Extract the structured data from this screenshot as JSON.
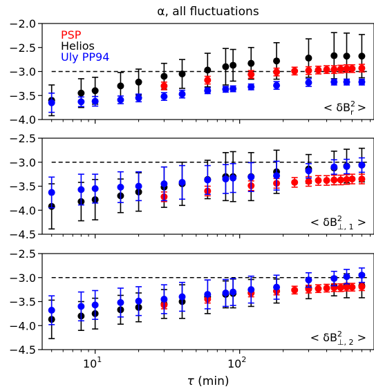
{
  "title": "α, all fluctuations",
  "xlabel_parts": {
    "symbol": "τ",
    "unit": " (min)"
  },
  "x_axis": {
    "scale": "log",
    "xlim": [
      4.3,
      850
    ],
    "major_ticks": [
      10,
      100
    ],
    "major_labels": [
      {
        "value": 10,
        "base": "10",
        "exp": "1"
      },
      {
        "value": 100,
        "base": "10",
        "exp": "2"
      }
    ],
    "minor_ticks": [
      5,
      6,
      7,
      8,
      9,
      20,
      30,
      40,
      50,
      60,
      70,
      80,
      90,
      200,
      300,
      400,
      500,
      600,
      700,
      800
    ]
  },
  "legend": [
    {
      "label": "PSP",
      "color": "#ff0000"
    },
    {
      "label": "Helios",
      "color": "#000000"
    },
    {
      "label": "Uly PP94",
      "color": "#0000ff"
    }
  ],
  "colors": {
    "PSP": "#ff0000",
    "Helios": "#000000",
    "Uly PP94": "#0000ff",
    "reference": "#000000"
  },
  "chart_data": [
    {
      "type": "scatter",
      "panel": "top",
      "annotation": {
        "prefix": "< δB",
        "sup": "2",
        "sub": "r",
        "suffix": " >"
      },
      "ylim": [
        -4.0,
        -2.0
      ],
      "yticks": [
        -4.0,
        -3.5,
        -3.0,
        -2.5,
        -2.0
      ],
      "ytick_labels": [
        "−4.0",
        "−3.5",
        "−3.0",
        "−2.5",
        "−2.0"
      ],
      "reference_line": -3.0,
      "series": [
        {
          "name": "Helios",
          "x": [
            5,
            8,
            10,
            15,
            20,
            30,
            40,
            60,
            80,
            90,
            120,
            180,
            300,
            450,
            550,
            700
          ],
          "y": [
            -3.6,
            -3.45,
            -3.4,
            -3.3,
            -3.22,
            -3.1,
            -3.05,
            -2.97,
            -2.9,
            -2.87,
            -2.83,
            -2.78,
            -2.72,
            -2.67,
            -2.68,
            -2.68
          ],
          "err": [
            0.32,
            0.3,
            0.28,
            0.28,
            0.27,
            0.27,
            0.3,
            0.35,
            0.38,
            0.33,
            0.33,
            0.38,
            0.4,
            0.48,
            0.48,
            0.45
          ]
        },
        {
          "name": "PSP",
          "x": [
            30,
            60,
            120,
            180,
            240,
            300,
            350,
            400,
            450,
            500,
            550,
            600,
            700
          ],
          "y": [
            -3.3,
            -3.18,
            -3.06,
            -3.01,
            -2.99,
            -2.98,
            -2.97,
            -2.96,
            -2.96,
            -2.95,
            -2.94,
            -2.94,
            -2.93
          ],
          "err": [
            0.08,
            0.08,
            0.08,
            0.08,
            0.08,
            0.08,
            0.08,
            0.08,
            0.08,
            0.08,
            0.08,
            0.08,
            0.08
          ]
        },
        {
          "name": "Uly PP94",
          "x": [
            5,
            8,
            10,
            15,
            20,
            30,
            40,
            60,
            80,
            90,
            120,
            180,
            300,
            450,
            550,
            700
          ],
          "y": [
            -3.65,
            -3.63,
            -3.62,
            -3.59,
            -3.55,
            -3.52,
            -3.47,
            -3.4,
            -3.37,
            -3.36,
            -3.32,
            -3.29,
            -3.23,
            -3.22,
            -3.22,
            -3.22
          ],
          "err": [
            0.2,
            0.1,
            0.1,
            0.08,
            0.08,
            0.08,
            0.08,
            0.06,
            0.06,
            0.06,
            0.06,
            0.08,
            0.08,
            0.06,
            0.06,
            0.06
          ]
        }
      ]
    },
    {
      "type": "scatter",
      "panel": "middle",
      "annotation": {
        "prefix": "< δB",
        "sup": "2",
        "sub": "⊥, 1",
        "suffix": " >"
      },
      "ylim": [
        -4.5,
        -2.5
      ],
      "yticks": [
        -4.5,
        -4.0,
        -3.5,
        -3.0,
        -2.5
      ],
      "ytick_labels": [
        "−4.5",
        "−4.0",
        "−3.5",
        "−3.0",
        "−2.5"
      ],
      "reference_line": -3.0,
      "series": [
        {
          "name": "Helios",
          "x": [
            5,
            8,
            10,
            15,
            20,
            30,
            40,
            60,
            80,
            90,
            120,
            180,
            300,
            450,
            550,
            700
          ],
          "y": [
            -3.92,
            -3.82,
            -3.78,
            -3.7,
            -3.62,
            -3.52,
            -3.45,
            -3.36,
            -3.3,
            -3.3,
            -3.3,
            -3.2,
            -3.14,
            -3.12,
            -3.08,
            -3.06
          ],
          "err": [
            0.47,
            0.4,
            0.42,
            0.35,
            0.4,
            0.42,
            0.45,
            0.4,
            0.5,
            0.52,
            0.5,
            0.45,
            0.3,
            0.35,
            0.35,
            0.35
          ]
        },
        {
          "name": "PSP",
          "x": [
            30,
            60,
            120,
            180,
            240,
            300,
            350,
            400,
            450,
            500,
            550,
            600,
            700
          ],
          "y": [
            -3.72,
            -3.6,
            -3.49,
            -3.44,
            -3.42,
            -3.4,
            -3.38,
            -3.38,
            -3.37,
            -3.37,
            -3.36,
            -3.35,
            -3.35
          ],
          "err": [
            0.1,
            0.1,
            0.1,
            0.1,
            0.1,
            0.1,
            0.1,
            0.1,
            0.1,
            0.1,
            0.1,
            0.1,
            0.1
          ]
        },
        {
          "name": "Uly PP94",
          "x": [
            5,
            8,
            10,
            15,
            20,
            30,
            40,
            60,
            80,
            90,
            120,
            180,
            300,
            450,
            550,
            700
          ],
          "y": [
            -3.63,
            -3.57,
            -3.55,
            -3.52,
            -3.5,
            -3.45,
            -3.42,
            -3.37,
            -3.35,
            -3.33,
            -3.31,
            -3.28,
            -3.18,
            -3.1,
            -3.09,
            -3.06
          ],
          "err": [
            0.32,
            0.32,
            0.3,
            0.32,
            0.3,
            0.35,
            0.35,
            0.3,
            0.3,
            0.3,
            0.3,
            0.3,
            0.15,
            0.15,
            0.15,
            0.15
          ]
        }
      ]
    },
    {
      "type": "scatter",
      "panel": "bottom",
      "annotation": {
        "prefix": "< δB",
        "sup": "2",
        "sub": "⊥, 2",
        "suffix": " >"
      },
      "ylim": [
        -4.5,
        -2.5
      ],
      "yticks": [
        -4.5,
        -4.0,
        -3.5,
        -3.0,
        -2.5
      ],
      "ytick_labels": [
        "−4.5",
        "−4.0",
        "−3.5",
        "−3.0",
        "−2.5"
      ],
      "reference_line": -3.0,
      "series": [
        {
          "name": "Helios",
          "x": [
            5,
            8,
            10,
            15,
            20,
            30,
            40,
            60,
            80,
            90,
            120,
            180,
            300,
            450,
            550,
            700
          ],
          "y": [
            -3.87,
            -3.8,
            -3.75,
            -3.67,
            -3.62,
            -3.55,
            -3.5,
            -3.4,
            -3.35,
            -3.33,
            -3.32,
            -3.28,
            -3.22,
            -3.18,
            -3.17,
            -3.17
          ],
          "err": [
            0.4,
            0.3,
            0.32,
            0.3,
            0.3,
            0.3,
            0.35,
            0.35,
            0.28,
            0.3,
            0.28,
            0.25,
            0.22,
            0.2,
            0.25,
            0.25
          ]
        },
        {
          "name": "PSP",
          "x": [
            30,
            60,
            120,
            180,
            240,
            300,
            350,
            400,
            450,
            500,
            550,
            600,
            700
          ],
          "y": [
            -3.57,
            -3.45,
            -3.32,
            -3.28,
            -3.26,
            -3.24,
            -3.23,
            -3.22,
            -3.21,
            -3.21,
            -3.2,
            -3.2,
            -3.19
          ],
          "err": [
            0.08,
            0.08,
            0.08,
            0.08,
            0.08,
            0.08,
            0.08,
            0.08,
            0.08,
            0.08,
            0.08,
            0.08,
            0.08
          ]
        },
        {
          "name": "Uly PP94",
          "x": [
            5,
            8,
            10,
            15,
            20,
            30,
            40,
            60,
            80,
            90,
            120,
            180,
            300,
            450,
            550,
            700
          ],
          "y": [
            -3.68,
            -3.6,
            -3.57,
            -3.52,
            -3.49,
            -3.45,
            -3.4,
            -3.35,
            -3.32,
            -3.3,
            -3.25,
            -3.2,
            -3.05,
            -3.02,
            -2.98,
            -2.95
          ],
          "err": [
            0.3,
            0.3,
            0.3,
            0.3,
            0.3,
            0.3,
            0.3,
            0.3,
            0.28,
            0.28,
            0.28,
            0.25,
            0.15,
            0.15,
            0.15,
            0.15
          ]
        }
      ]
    }
  ]
}
